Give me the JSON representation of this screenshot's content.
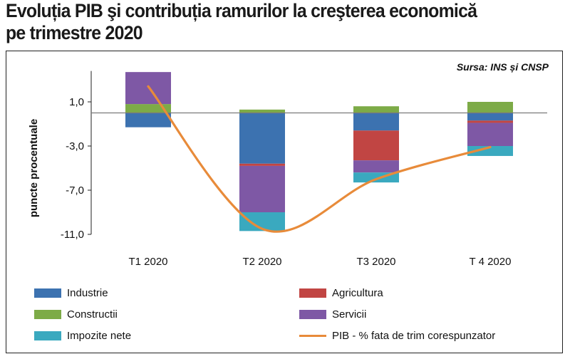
{
  "title": {
    "line1": "Evoluția PIB şi contribuția ramurilor la creşterea economică",
    "line2": "pe trimestre 2020"
  },
  "source": "Sursa: INS și CNSP",
  "chart_data": {
    "type": "bar",
    "stacked": true,
    "categories": [
      "T1 2020",
      "T2 2020",
      "T3 2020",
      "T 4 2020"
    ],
    "ylabel": "puncte procentuale",
    "ylim": [
      -11,
      3.8
    ],
    "yticks": [
      "1,0",
      "-3,0",
      "-7,0",
      "-11,0"
    ],
    "ytick_values": [
      1,
      -3,
      -7,
      -11
    ],
    "legend_position": "bottom",
    "series": [
      {
        "name": "Industrie",
        "color": "#3c72b0",
        "values": [
          -1.3,
          -4.6,
          -1.6,
          -0.7
        ]
      },
      {
        "name": "Agricultura",
        "color": "#c14543",
        "values": [
          0.0,
          -0.2,
          -2.7,
          -0.2
        ]
      },
      {
        "name": "Constructii",
        "color": "#7dab47",
        "values": [
          0.8,
          0.3,
          0.6,
          1.0
        ]
      },
      {
        "name": "Servicii",
        "color": "#7e58a5",
        "values": [
          2.9,
          -4.2,
          -1.1,
          -2.1
        ]
      },
      {
        "name": "Impozite nete",
        "color": "#3aa9bf",
        "values": [
          0.0,
          -1.7,
          -0.9,
          -0.9
        ]
      }
    ],
    "line": {
      "name": "PIB - % fata de trim corespunzator",
      "color": "#e88b3a",
      "values": [
        2.4,
        -10.5,
        -6.0,
        -3.1
      ]
    }
  }
}
